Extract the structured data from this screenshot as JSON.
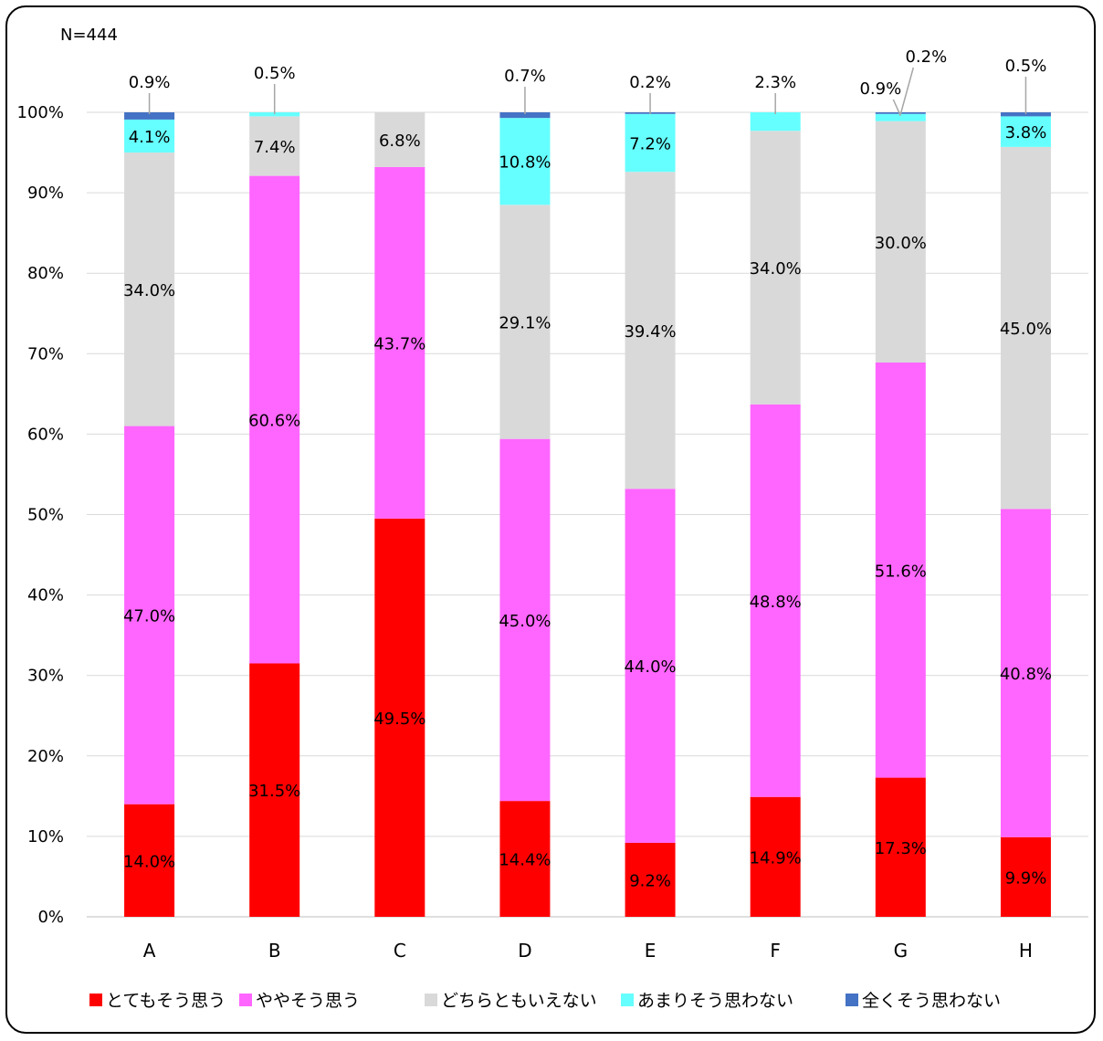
{
  "chart_data": {
    "type": "bar",
    "stacked": true,
    "title": "",
    "annotation": "N=444",
    "xlabel": "",
    "ylabel": "",
    "ylim": [
      0,
      100
    ],
    "y_ticks": [
      "0%",
      "10%",
      "20%",
      "30%",
      "40%",
      "50%",
      "60%",
      "70%",
      "80%",
      "90%",
      "100%"
    ],
    "grid": true,
    "legend_position": "bottom",
    "categories": [
      "A",
      "B",
      "C",
      "D",
      "E",
      "F",
      "G",
      "H"
    ],
    "series": [
      {
        "name": "とてもそう思う",
        "color": "#ff0000",
        "values": [
          14.0,
          31.5,
          49.5,
          14.4,
          9.2,
          14.9,
          17.3,
          9.9
        ],
        "labels": [
          "14.0%",
          "31.5%",
          "49.5%",
          "14.4%",
          "9.2%",
          "14.9%",
          "17.3%",
          "9.9%"
        ]
      },
      {
        "name": "ややそう思う",
        "color": "#ff66ff",
        "values": [
          47.0,
          60.6,
          43.7,
          45.0,
          44.0,
          48.8,
          51.6,
          40.8
        ],
        "labels": [
          "47.0%",
          "60.6%",
          "43.7%",
          "45.0%",
          "44.0%",
          "48.8%",
          "51.6%",
          "40.8%"
        ]
      },
      {
        "name": "どちらともいえない",
        "color": "#d9d9d9",
        "values": [
          34.0,
          7.4,
          6.8,
          29.1,
          39.4,
          34.0,
          30.0,
          45.0
        ],
        "labels": [
          "34.0%",
          "7.4%",
          "6.8%",
          "29.1%",
          "39.4%",
          "34.0%",
          "30.0%",
          "45.0%"
        ]
      },
      {
        "name": "あまりそう思わない",
        "color": "#66ffff",
        "values": [
          4.1,
          0.5,
          0.0,
          10.8,
          7.2,
          2.3,
          0.9,
          3.8
        ],
        "labels": [
          "4.1%",
          "0.5%",
          "",
          "10.8%",
          "7.2%",
          "2.3%",
          "0.9%",
          "3.8%"
        ]
      },
      {
        "name": "全くそう思わない",
        "color": "#4472c4",
        "values": [
          0.9,
          0.0,
          0.0,
          0.7,
          0.2,
          0.0,
          0.2,
          0.5
        ],
        "labels": [
          "0.9%",
          "",
          "",
          "0.7%",
          "0.2%",
          "",
          "0.2%",
          "0.5%"
        ]
      }
    ]
  }
}
